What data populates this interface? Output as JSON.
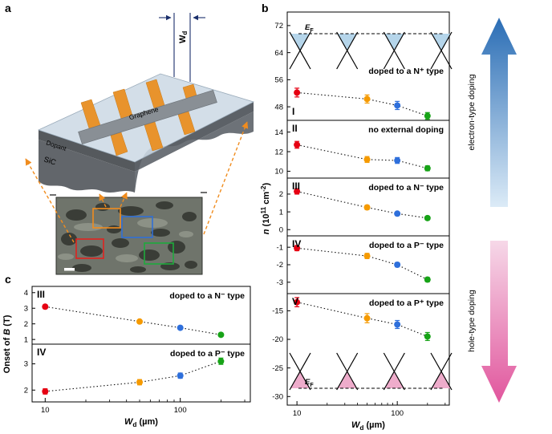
{
  "panel_labels": {
    "a": "a",
    "b": "b",
    "c": "c"
  },
  "panel_a": {
    "wd": {
      "main": "W",
      "sub": "d"
    },
    "graphene_label": "Graphene",
    "dopant_label": "Dopant",
    "sic_label": "SiC"
  },
  "panel_b": {
    "ef_label": "*E*_{F}",
    "up_arrow_label": "electron-type doping",
    "down_arrow_label": "hole-type doping"
  },
  "chart_data": [
    {
      "id": "panel-b",
      "type": "scatter",
      "x": [
        10,
        50,
        100,
        200
      ],
      "x_scale": "log",
      "xlim": [
        8,
        330
      ],
      "xticks": [
        10,
        100
      ],
      "xminor": [
        20,
        30,
        40,
        50,
        60,
        70,
        80,
        90,
        200,
        300
      ],
      "xlabel": "*W*_{d} (µm)",
      "ylabel": "*n* (10^{11} cm^{-2})",
      "point_colors": [
        "#e60012",
        "#f59a00",
        "#2e6fdb",
        "#17a317"
      ],
      "subpanels": [
        {
          "numeral": "I",
          "annotation": "doped to a N⁺ type",
          "yticks": [
            48,
            56,
            64,
            72
          ],
          "ylim": [
            44,
            76
          ],
          "values": [
            52.2,
            50.3,
            48.4,
            45.3
          ],
          "errors": [
            1.3,
            1.2,
            1.2,
            1.0
          ],
          "cones": "electron"
        },
        {
          "numeral": "II",
          "annotation": "no external doping",
          "yticks": [
            10,
            12,
            14
          ],
          "ylim": [
            9.3,
            15.2
          ],
          "values": [
            12.7,
            11.2,
            11.1,
            10.3
          ],
          "errors": [
            0.35,
            0.3,
            0.3,
            0.25
          ]
        },
        {
          "numeral": "III",
          "annotation": "doped to a N⁻ type",
          "yticks": [
            0,
            1,
            2
          ],
          "ylim": [
            -0.35,
            2.9
          ],
          "values": [
            2.15,
            1.25,
            0.9,
            0.65
          ],
          "errors": [
            0.15,
            0.12,
            0.1,
            0.1
          ]
        },
        {
          "numeral": "IV",
          "annotation": "doped to a P⁻ type",
          "yticks": [
            -3,
            -2,
            -1
          ],
          "ylim": [
            -3.65,
            -0.35
          ],
          "values": [
            -1.05,
            -1.5,
            -2.0,
            -2.85
          ],
          "errors": [
            0.15,
            0.15,
            0.12,
            0.12
          ]
        },
        {
          "numeral": "V",
          "annotation": "doped to a P⁺ type",
          "yticks": [
            -30,
            -25,
            -20,
            -15
          ],
          "ylim": [
            -31.5,
            -12.0
          ],
          "values": [
            -13.5,
            -16.3,
            -17.4,
            -19.5
          ],
          "errors": [
            0.8,
            0.8,
            0.7,
            0.7
          ],
          "cones": "hole"
        }
      ]
    },
    {
      "id": "panel-c",
      "type": "scatter",
      "x": [
        10,
        50,
        100,
        200
      ],
      "x_scale": "log",
      "xlim": [
        8,
        330
      ],
      "xticks": [
        10,
        100
      ],
      "xminor": [
        20,
        30,
        40,
        50,
        60,
        70,
        80,
        90,
        200,
        300
      ],
      "xlabel": "*W*_{d} (µm)",
      "ylabel": "Onset of *B* (T)",
      "point_colors": [
        "#e60012",
        "#f59a00",
        "#2e6fdb",
        "#17a317"
      ],
      "subpanels": [
        {
          "numeral": "III",
          "annotation": "doped to a N⁻ type",
          "yticks": [
            1,
            2,
            3,
            4
          ],
          "ylim": [
            0.7,
            4.4
          ],
          "values": [
            3.1,
            2.15,
            1.75,
            1.3
          ],
          "errors": [
            0.12,
            0.1,
            0.1,
            0.1
          ]
        },
        {
          "numeral": "IV",
          "annotation": "doped to a P⁻ type",
          "yticks": [
            2,
            3
          ],
          "ylim": [
            1.55,
            3.75
          ],
          "values": [
            1.95,
            2.3,
            2.55,
            3.1
          ],
          "errors": [
            0.1,
            0.1,
            0.1,
            0.12
          ]
        }
      ]
    }
  ]
}
